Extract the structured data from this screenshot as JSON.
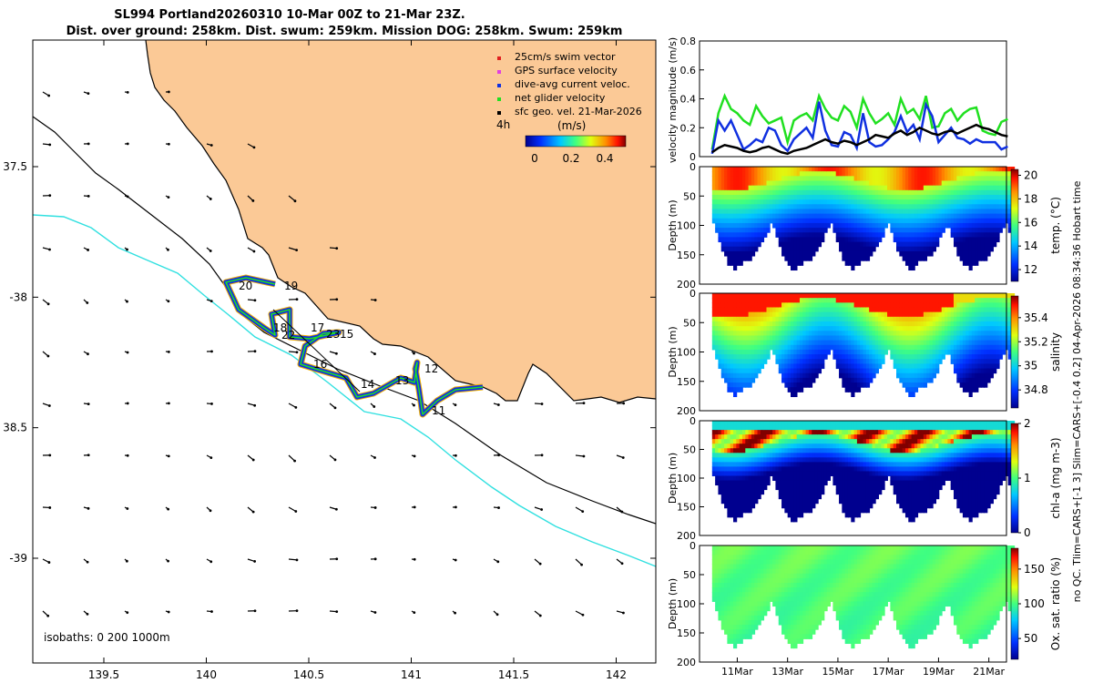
{
  "header": {
    "title_line1": "SL994 Portland20260310 10-Mar 00Z to 21-Mar 23Z.",
    "title_line2": "Dist. over ground: 258km. Dist. swum: 259km. Mission DOG: 258km. Swum: 259km"
  },
  "side_note": "no QC. Tlim=CARS+[-1 3] Slim=CARS+[-0.4 0.2] 04-Apr-2026 08:34:36 Hobart time",
  "map": {
    "lon_ticks": [
      "139.5",
      "140",
      "140.5",
      "141",
      "141.5",
      "142"
    ],
    "lat_ticks": [
      "37.5",
      "-38",
      "38.5",
      "-39"
    ],
    "lon_values": [
      139.5,
      140,
      140.5,
      141,
      141.5,
      142
    ],
    "lat_values": [
      -37.5,
      -38,
      -38.5,
      -39
    ],
    "isobaths_text": "isobaths: 0   200  1000m",
    "day_labels": [
      "20",
      "19",
      "18",
      "22",
      "17",
      "23",
      "15",
      "16",
      "14",
      "13",
      "12",
      "11"
    ],
    "legend": {
      "items": [
        "25cm/s swim vector",
        "GPS surface velocity",
        "dive-avg current veloc.",
        "net glider velocity",
        "sfc geo. vel. 21-Mar-2026"
      ],
      "colors": [
        "#e02020",
        "#e040e0",
        "#1030e0",
        "#20e020",
        "#000000"
      ],
      "time_label": "4h",
      "colorbar_title": "(m/s)",
      "colorbar_ticks": [
        "0",
        "0.2",
        "0.4"
      ]
    },
    "colors": {
      "land": "#fbc996",
      "coast_line": "#000000",
      "isobath_1000": "#30e0e0"
    }
  },
  "chart_data": [
    {
      "type": "line",
      "title": "",
      "ylabel": "velocity magnitude (m/s)",
      "ylim": [
        0,
        0.8
      ],
      "yticks": [
        "0",
        "0.2",
        "0.4",
        "0.6",
        "0.8"
      ],
      "x": [
        0,
        0.25,
        0.5,
        0.75,
        1,
        1.25,
        1.5,
        1.75,
        2,
        2.25,
        2.5,
        2.75,
        3,
        3.25,
        3.5,
        3.75,
        4,
        4.25,
        4.5,
        4.75,
        5,
        5.25,
        5.5,
        5.75,
        6,
        6.25,
        6.5,
        6.75,
        7,
        7.25,
        7.5,
        7.75,
        8,
        8.25,
        8.5,
        8.75,
        9,
        9.25,
        9.5,
        9.75,
        10,
        10.25,
        10.5,
        10.75,
        11,
        11.25,
        11.5,
        11.75
      ],
      "series": [
        {
          "name": "net glider velocity",
          "color": "#20e020",
          "values": [
            0.05,
            0.3,
            0.42,
            0.33,
            0.3,
            0.25,
            0.22,
            0.35,
            0.28,
            0.23,
            0.25,
            0.27,
            0.1,
            0.25,
            0.28,
            0.3,
            0.25,
            0.42,
            0.33,
            0.27,
            0.25,
            0.35,
            0.31,
            0.2,
            0.4,
            0.3,
            0.23,
            0.26,
            0.3,
            0.22,
            0.4,
            0.3,
            0.33,
            0.26,
            0.42,
            0.2,
            0.21,
            0.3,
            0.33,
            0.25,
            0.3,
            0.33,
            0.34,
            0.18,
            0.16,
            0.15,
            0.24,
            0.26
          ]
        },
        {
          "name": "dive-avg current veloc.",
          "color": "#1030e0",
          "values": [
            0.02,
            0.25,
            0.18,
            0.25,
            0.15,
            0.05,
            0.08,
            0.12,
            0.1,
            0.2,
            0.18,
            0.08,
            0.04,
            0.12,
            0.16,
            0.2,
            0.13,
            0.38,
            0.18,
            0.08,
            0.07,
            0.17,
            0.15,
            0.06,
            0.3,
            0.1,
            0.07,
            0.08,
            0.12,
            0.17,
            0.28,
            0.17,
            0.22,
            0.12,
            0.36,
            0.28,
            0.1,
            0.15,
            0.2,
            0.13,
            0.12,
            0.09,
            0.12,
            0.1,
            0.1,
            0.1,
            0.05,
            0.07
          ]
        },
        {
          "name": "sfc geo. vel.",
          "color": "#000000",
          "values": [
            0.03,
            0.06,
            0.08,
            0.07,
            0.06,
            0.04,
            0.03,
            0.04,
            0.06,
            0.07,
            0.05,
            0.03,
            0.02,
            0.04,
            0.05,
            0.06,
            0.08,
            0.1,
            0.12,
            0.1,
            0.09,
            0.11,
            0.1,
            0.08,
            0.1,
            0.12,
            0.15,
            0.14,
            0.13,
            0.16,
            0.18,
            0.15,
            0.17,
            0.2,
            0.18,
            0.16,
            0.15,
            0.17,
            0.18,
            0.16,
            0.18,
            0.2,
            0.22,
            0.2,
            0.19,
            0.17,
            0.15,
            0.14
          ]
        }
      ]
    },
    {
      "type": "heatmap",
      "variable": "temperature",
      "ylabel": "Depth (m)",
      "cblabel": "temp. (°C)",
      "ylim": [
        0,
        200
      ],
      "yticks": [
        "0",
        "50",
        "100",
        "150",
        "200"
      ],
      "cbticks": [
        "12",
        "14",
        "16",
        "18",
        "20"
      ],
      "cbrange": [
        11,
        20.5
      ]
    },
    {
      "type": "heatmap",
      "variable": "salinity",
      "ylabel": "Depth (m)",
      "cblabel": "salinity",
      "ylim": [
        0,
        200
      ],
      "yticks": [
        "0",
        "50",
        "100",
        "150",
        "200"
      ],
      "cbticks": [
        "34.8",
        "35",
        "35.2",
        "35.4"
      ],
      "cbrange": [
        34.65,
        35.58
      ]
    },
    {
      "type": "heatmap",
      "variable": "chlorophyll",
      "ylabel": "Depth (m)",
      "cblabel": "chl-a (mg m-3)",
      "ylim": [
        0,
        200
      ],
      "yticks": [
        "0",
        "50",
        "100",
        "150",
        "200"
      ],
      "cbticks": [
        "0",
        "1",
        "2"
      ],
      "cbrange": [
        0,
        2
      ]
    },
    {
      "type": "heatmap",
      "variable": "oxygen",
      "ylabel": "Depth (m)",
      "cblabel": "Ox. sat. ratio (%)",
      "ylim": [
        0,
        200
      ],
      "yticks": [
        "0",
        "50",
        "100",
        "150",
        "200"
      ],
      "cbticks": [
        "50",
        "100",
        "150"
      ],
      "cbrange": [
        20,
        180
      ],
      "xticks": [
        "11Mar",
        "13Mar",
        "15Mar",
        "17Mar",
        "19Mar",
        "21Mar"
      ],
      "xtick_days": [
        1,
        3,
        5,
        7,
        9,
        11
      ]
    }
  ]
}
